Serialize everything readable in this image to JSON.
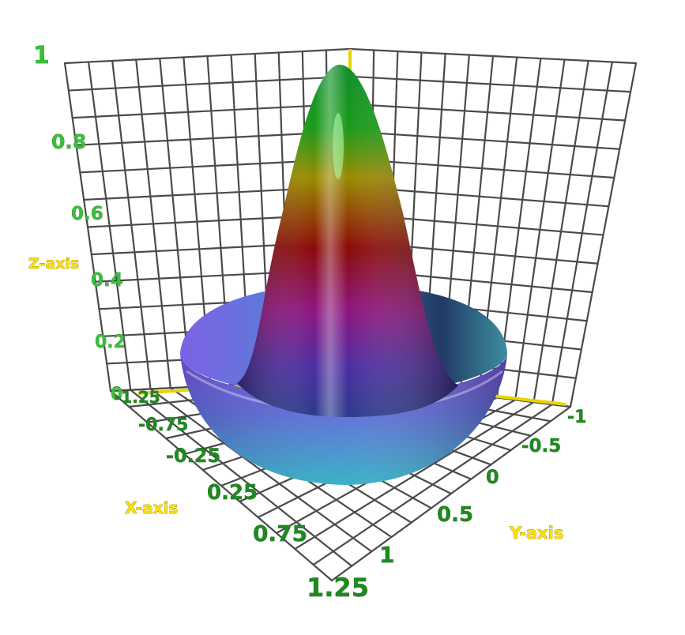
{
  "chart_data": {
    "type": "surface",
    "function": "Mexican-hat / sinc-like radial surface, peak z = 1 at origin",
    "x_axis": {
      "label": "X-axis",
      "ticks": [
        "-1.25",
        "-0.75",
        "-0.25",
        "0.25",
        "0.75",
        "1.25"
      ],
      "range": [
        -1.25,
        1.25
      ]
    },
    "y_axis": {
      "label": "Y-axis",
      "ticks": [
        "-1",
        "-0.5",
        "0",
        "0.5",
        "1"
      ],
      "range": [
        -1,
        1
      ]
    },
    "z_axis": {
      "label": "Z-axis",
      "ticks": [
        "0",
        "0.2",
        "0.4",
        "0.6",
        "0.8",
        "1"
      ],
      "range": [
        0,
        1
      ]
    },
    "surface": {
      "peak": 1,
      "rim_height": 0.22
    },
    "colormap": [
      "#3aa8c9",
      "#7b3fe0",
      "#9b1fa8",
      "#8b0000",
      "#b88c00",
      "#1a7f1a",
      "#0fa300"
    ],
    "grid": true,
    "axis_line_color": "#e8d400"
  }
}
